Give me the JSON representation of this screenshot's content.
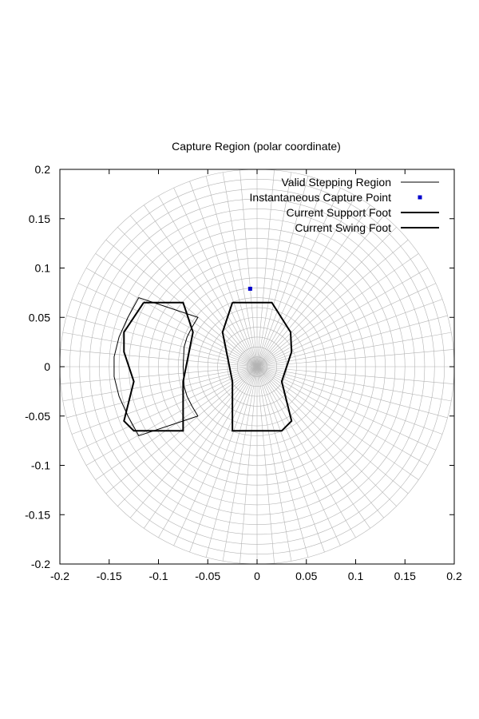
{
  "chart_data": {
    "type": "line",
    "title": "Capture Region (polar coordinate)",
    "xlabel": "",
    "ylabel": "",
    "xlim": [
      -0.2,
      0.2
    ],
    "ylim": [
      -0.2,
      0.2
    ],
    "x_ticks": [
      -0.2,
      -0.15,
      -0.1,
      -0.05,
      0,
      0.05,
      0.1,
      0.15,
      0.2
    ],
    "x_tick_labels": [
      "-0.2",
      "-0.15",
      "-0.1",
      "-0.05",
      "0",
      "0.05",
      "0.1",
      "0.15",
      "0.2"
    ],
    "y_ticks": [
      -0.2,
      -0.15,
      -0.1,
      -0.05,
      0,
      0.05,
      0.1,
      0.15,
      0.2
    ],
    "y_tick_labels": [
      "-0.2",
      "-0.15",
      "-0.1",
      "-0.05",
      "0",
      "0.05",
      "0.1",
      "0.15",
      "0.2"
    ],
    "polar_grid": {
      "max_radius": 0.2,
      "radial_rings": 20,
      "angular_spokes": 72
    },
    "legend_position": "top-right",
    "series": [
      {
        "name": "Valid Stepping Region",
        "style": "thin-line",
        "color": "#000000",
        "points": [
          [
            -0.06,
            -0.05
          ],
          [
            -0.066,
            -0.04
          ],
          [
            -0.071,
            -0.03
          ],
          [
            -0.074,
            -0.02
          ],
          [
            -0.075,
            0.0
          ],
          [
            -0.074,
            0.02
          ],
          [
            -0.071,
            0.03
          ],
          [
            -0.066,
            0.04
          ],
          [
            -0.06,
            0.05
          ],
          [
            -0.12,
            0.07
          ],
          [
            -0.131,
            0.05
          ],
          [
            -0.14,
            0.03
          ],
          [
            -0.145,
            0.01
          ],
          [
            -0.145,
            -0.01
          ],
          [
            -0.14,
            -0.03
          ],
          [
            -0.131,
            -0.05
          ],
          [
            -0.12,
            -0.07
          ],
          [
            -0.06,
            -0.05
          ]
        ]
      },
      {
        "name": "Instantaneous Capture Point",
        "style": "marker",
        "color": "#0000cc",
        "points": [
          [
            -0.007,
            0.079
          ]
        ]
      },
      {
        "name": "Current Support Foot",
        "style": "thick-line",
        "color": "#000000",
        "points": [
          [
            -0.025,
            0.065
          ],
          [
            0.015,
            0.065
          ],
          [
            0.034,
            0.035
          ],
          [
            0.035,
            0.015
          ],
          [
            0.025,
            -0.015
          ],
          [
            0.035,
            -0.055
          ],
          [
            0.025,
            -0.065
          ],
          [
            -0.025,
            -0.065
          ],
          [
            -0.025,
            -0.015
          ],
          [
            -0.035,
            0.035
          ],
          [
            -0.025,
            0.065
          ]
        ]
      },
      {
        "name": "Current Swing Foot",
        "style": "thick-line",
        "color": "#000000",
        "points": [
          [
            -0.115,
            0.065
          ],
          [
            -0.075,
            0.065
          ],
          [
            -0.065,
            0.035
          ],
          [
            -0.075,
            -0.015
          ],
          [
            -0.075,
            -0.065
          ],
          [
            -0.125,
            -0.065
          ],
          [
            -0.135,
            -0.055
          ],
          [
            -0.125,
            -0.015
          ],
          [
            -0.135,
            0.015
          ],
          [
            -0.135,
            0.035
          ],
          [
            -0.115,
            0.065
          ]
        ]
      }
    ]
  }
}
